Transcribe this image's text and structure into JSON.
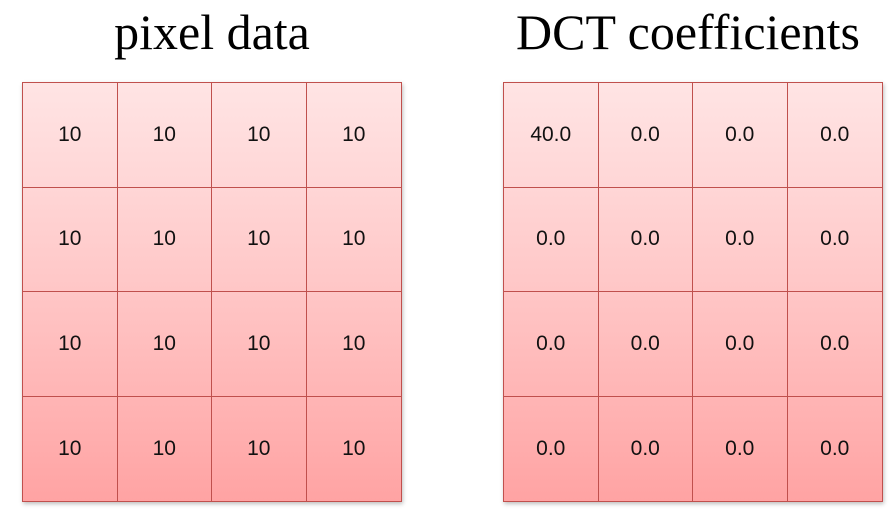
{
  "left_panel": {
    "title": "pixel data",
    "rows": [
      [
        "10",
        "10",
        "10",
        "10"
      ],
      [
        "10",
        "10",
        "10",
        "10"
      ],
      [
        "10",
        "10",
        "10",
        "10"
      ],
      [
        "10",
        "10",
        "10",
        "10"
      ]
    ]
  },
  "right_panel": {
    "title": "DCT coefficients",
    "rows": [
      [
        "40.0",
        "0.0",
        "0.0",
        "0.0"
      ],
      [
        "0.0",
        "0.0",
        "0.0",
        "0.0"
      ],
      [
        "0.0",
        "0.0",
        "0.0",
        "0.0"
      ],
      [
        "0.0",
        "0.0",
        "0.0",
        "0.0"
      ]
    ]
  },
  "colors": {
    "grid_border": "#c0504d",
    "cell_fill_top": "#ffe4e4",
    "cell_fill_bottom": "#ffa3a3"
  }
}
